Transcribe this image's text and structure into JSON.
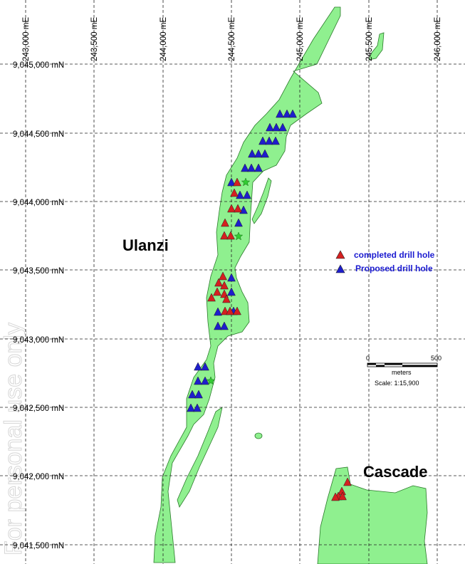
{
  "grid": {
    "eastings": [
      "243,000 mE",
      "243,500 mE",
      "244,000 mE",
      "244,500 mE",
      "245,000 mE",
      "245,500 mE",
      "246,000 mE"
    ],
    "northings": [
      "9,045,000 mN",
      "9,044,500 mN",
      "9,044,000 mN",
      "9,043,500 mN",
      "9,043,000 mN",
      "9,042,500 mN",
      "9,042,000 mN",
      "9,041,500 mN"
    ]
  },
  "places": {
    "ulanzi": "Ulanzi",
    "cascade": "Cascade"
  },
  "legend": {
    "completed": "completed drill hole",
    "proposed": "Proposed drill hole"
  },
  "scale_bar": {
    "start": "0",
    "end": "500",
    "unit": "meters",
    "scale": "Scale: 1:15,900"
  },
  "colors": {
    "zone": "#8ff08f",
    "completed": "#d42020",
    "proposed": "#1e1ecc",
    "star": "#33cc33",
    "legend_text": "#1a1ad0"
  },
  "watermark": "For personal use only"
}
